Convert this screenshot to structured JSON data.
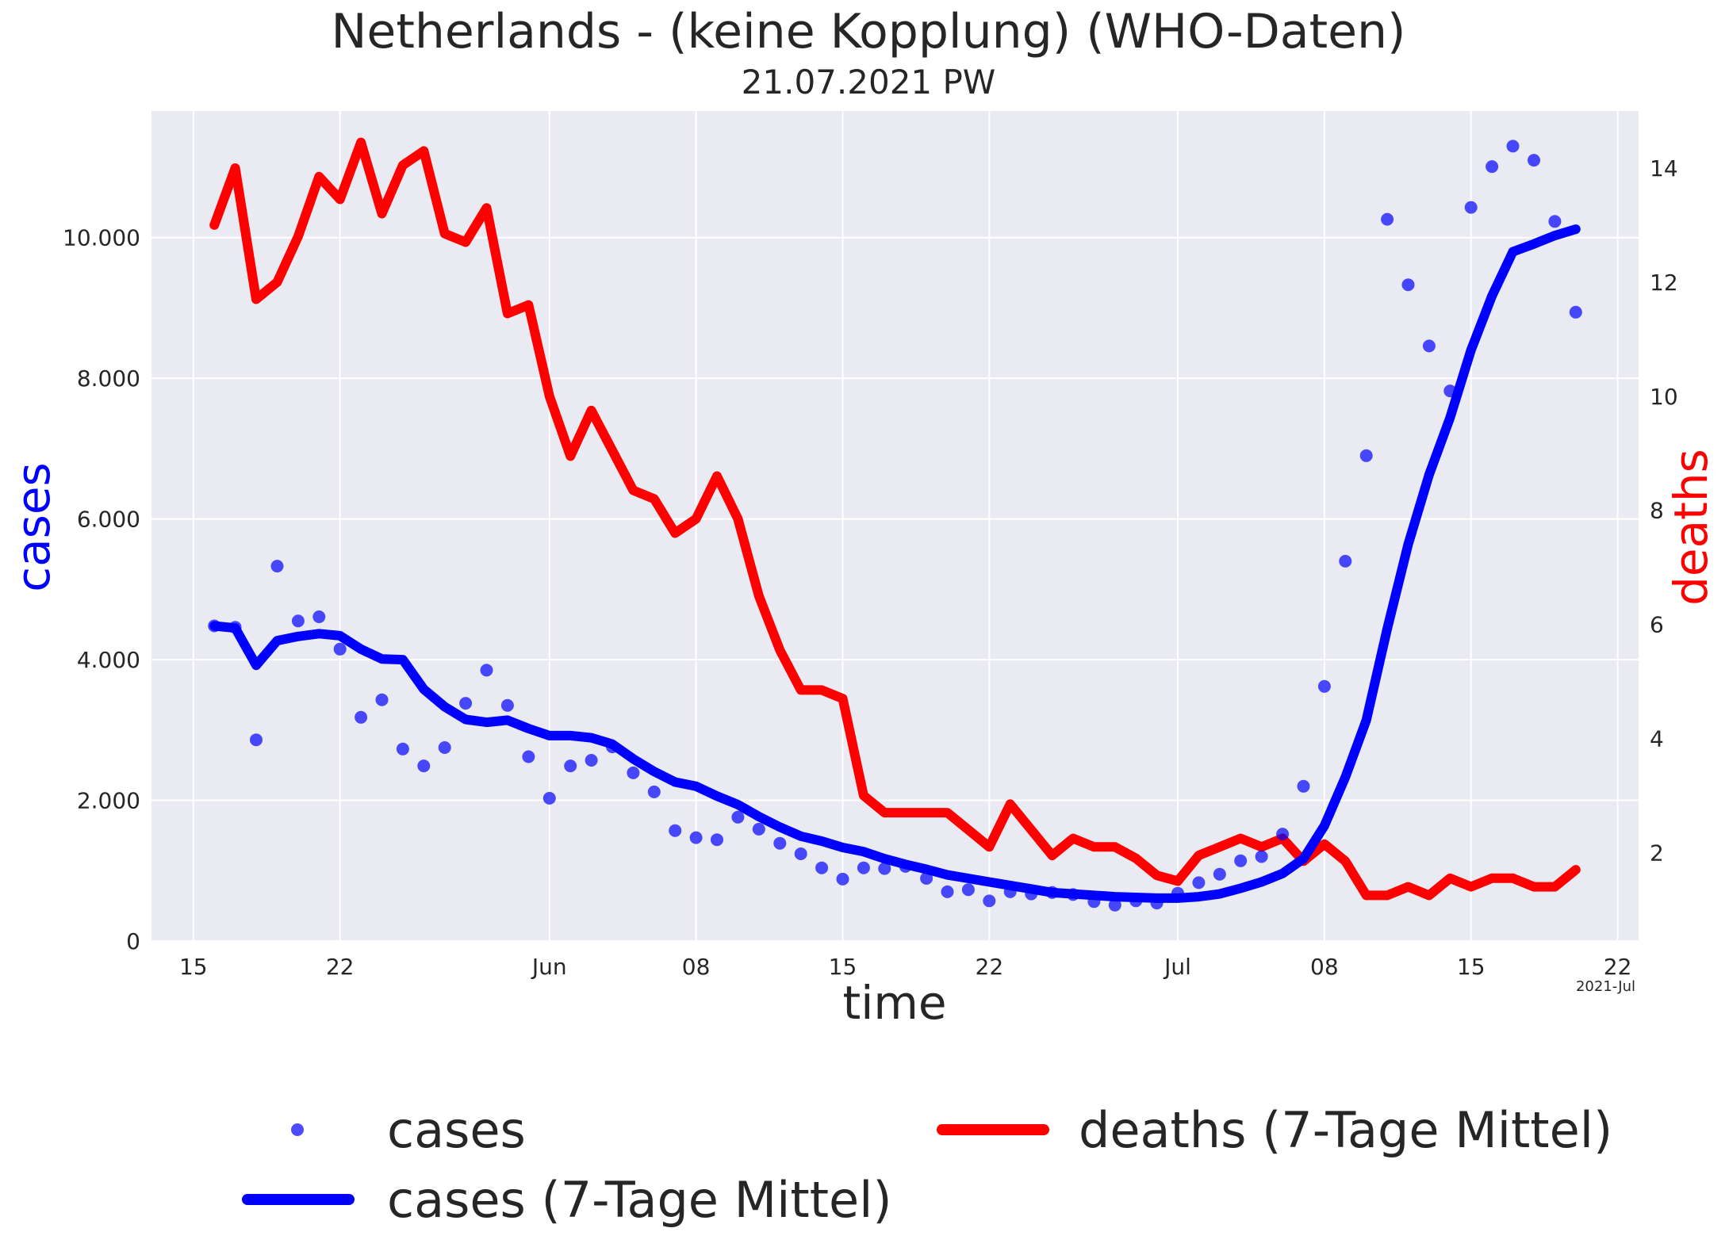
{
  "chart_data": {
    "type": "line",
    "title": "Netherlands - (keine Kopplung)  (WHO-Daten)",
    "subtitle": "21.07.2021 PW",
    "xlabel": "time",
    "ylabel_left": "cases",
    "ylabel_right": "deaths",
    "offset_label": "2021-Jul",
    "ylim_left": [
      0,
      11800
    ],
    "ylim_right": [
      0.45,
      15.0
    ],
    "xlim": [
      "2021-05-13",
      "2021-07-23"
    ],
    "grid": true,
    "legend_placement": "bottom",
    "x_ticks": [
      {
        "date": "2021-05-15",
        "label": "15"
      },
      {
        "date": "2021-05-22",
        "label": "22"
      },
      {
        "date": "2021-06-01",
        "label": "Jun"
      },
      {
        "date": "2021-06-08",
        "label": "08"
      },
      {
        "date": "2021-06-15",
        "label": "15"
      },
      {
        "date": "2021-06-22",
        "label": "22"
      },
      {
        "date": "2021-07-01",
        "label": "Jul"
      },
      {
        "date": "2021-07-08",
        "label": "08"
      },
      {
        "date": "2021-07-15",
        "label": "15"
      },
      {
        "date": "2021-07-22",
        "label": "22"
      }
    ],
    "y_ticks_left": [
      {
        "value": 0,
        "label": "0"
      },
      {
        "value": 2000,
        "label": "2.000"
      },
      {
        "value": 4000,
        "label": "4.000"
      },
      {
        "value": 6000,
        "label": "6.000"
      },
      {
        "value": 8000,
        "label": "8.000"
      },
      {
        "value": 10000,
        "label": "10.000"
      }
    ],
    "y_ticks_right": [
      {
        "value": 2,
        "label": "2"
      },
      {
        "value": 4,
        "label": "4"
      },
      {
        "value": 6,
        "label": "6"
      },
      {
        "value": 8,
        "label": "8"
      },
      {
        "value": 10,
        "label": "10"
      },
      {
        "value": 12,
        "label": "12"
      },
      {
        "value": 14,
        "label": "14"
      }
    ],
    "x": [
      "2021-05-16",
      "2021-05-17",
      "2021-05-18",
      "2021-05-19",
      "2021-05-20",
      "2021-05-21",
      "2021-05-22",
      "2021-05-23",
      "2021-05-24",
      "2021-05-25",
      "2021-05-26",
      "2021-05-27",
      "2021-05-28",
      "2021-05-29",
      "2021-05-30",
      "2021-05-31",
      "2021-06-01",
      "2021-06-02",
      "2021-06-03",
      "2021-06-04",
      "2021-06-05",
      "2021-06-06",
      "2021-06-07",
      "2021-06-08",
      "2021-06-09",
      "2021-06-10",
      "2021-06-11",
      "2021-06-12",
      "2021-06-13",
      "2021-06-14",
      "2021-06-15",
      "2021-06-16",
      "2021-06-17",
      "2021-06-18",
      "2021-06-19",
      "2021-06-20",
      "2021-06-21",
      "2021-06-22",
      "2021-06-23",
      "2021-06-24",
      "2021-06-25",
      "2021-06-26",
      "2021-06-27",
      "2021-06-28",
      "2021-06-29",
      "2021-06-30",
      "2021-07-01",
      "2021-07-02",
      "2021-07-03",
      "2021-07-04",
      "2021-07-05",
      "2021-07-06",
      "2021-07-07",
      "2021-07-08",
      "2021-07-09",
      "2021-07-10",
      "2021-07-11",
      "2021-07-12",
      "2021-07-13",
      "2021-07-14",
      "2021-07-15",
      "2021-07-16",
      "2021-07-17",
      "2021-07-18",
      "2021-07-19",
      "2021-07-20"
    ],
    "series": [
      {
        "name": "cases",
        "kind": "scatter",
        "axis": "left",
        "color": "#0000ff",
        "values": [
          4480,
          4460,
          2860,
          5330,
          4550,
          4610,
          4150,
          3180,
          3430,
          2730,
          2490,
          2750,
          3380,
          3850,
          3350,
          2620,
          2030,
          2490,
          2570,
          2760,
          2390,
          2120,
          1570,
          1470,
          1440,
          1760,
          1590,
          1390,
          1240,
          1040,
          880,
          1040,
          1030,
          1060,
          890,
          700,
          730,
          570,
          700,
          670,
          690,
          660,
          560,
          510,
          570,
          540,
          680,
          830,
          950,
          1140,
          1200,
          1520,
          2200,
          3620,
          5400,
          6900,
          10260,
          9330,
          8460,
          7820,
          10430,
          11010,
          11300,
          11100,
          10230,
          8940
        ]
      },
      {
        "name": "cases (7-Tage Mittel)",
        "kind": "line",
        "axis": "left",
        "color": "#0000ff",
        "values": [
          4480,
          4450,
          3920,
          4270,
          4330,
          4370,
          4340,
          4150,
          4010,
          4000,
          3580,
          3330,
          3150,
          3110,
          3140,
          3020,
          2920,
          2920,
          2890,
          2800,
          2590,
          2410,
          2260,
          2200,
          2060,
          1940,
          1770,
          1620,
          1490,
          1420,
          1330,
          1270,
          1170,
          1090,
          1020,
          940,
          890,
          840,
          790,
          740,
          690,
          670,
          650,
          630,
          620,
          610,
          610,
          630,
          670,
          750,
          840,
          960,
          1170,
          1640,
          2330,
          3140,
          4440,
          5640,
          6630,
          7440,
          8400,
          9170,
          9800,
          9910,
          10030,
          10120
        ]
      },
      {
        "name": "deaths (7-Tage Mittel)",
        "kind": "line",
        "axis": "right",
        "color": "#ff0000",
        "values": [
          13.0,
          14.0,
          11.7,
          12.0,
          12.8,
          13.85,
          13.45,
          14.45,
          13.2,
          14.05,
          14.3,
          12.85,
          12.7,
          13.3,
          11.45,
          11.6,
          10.0,
          8.95,
          9.75,
          9.05,
          8.35,
          8.2,
          7.6,
          7.85,
          8.6,
          7.85,
          6.5,
          5.55,
          4.85,
          4.85,
          4.7,
          3.0,
          2.7,
          2.7,
          2.7,
          2.7,
          2.4,
          2.1,
          2.85,
          2.4,
          1.95,
          2.25,
          2.1,
          2.1,
          1.9,
          1.6,
          1.5,
          1.95,
          2.1,
          2.25,
          2.1,
          2.25,
          1.85,
          2.15,
          1.85,
          1.25,
          1.25,
          1.4,
          1.25,
          1.55,
          1.4,
          1.55,
          1.55,
          1.4,
          1.4,
          1.7
        ]
      }
    ]
  },
  "legend": {
    "cases_scatter_label": "cases",
    "cases_line_label": "cases (7-Tage Mittel)",
    "deaths_line_label": "deaths (7-Tage Mittel)"
  }
}
